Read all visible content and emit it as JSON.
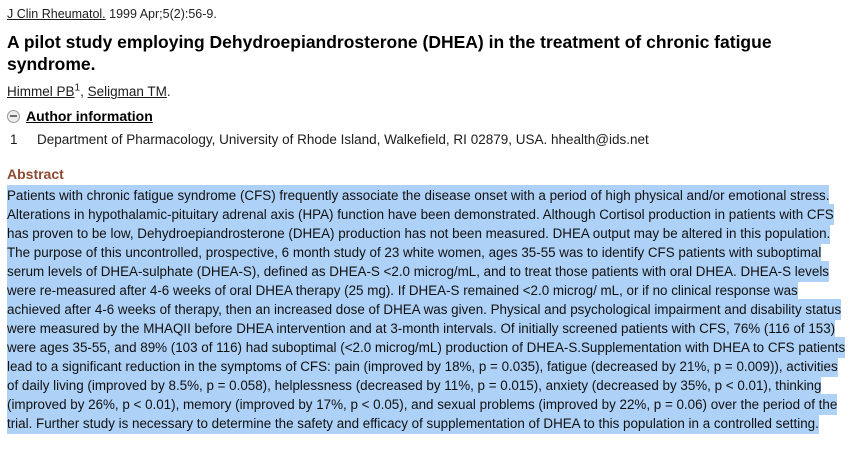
{
  "colors": {
    "selection": "#aed1f7",
    "abstract_heading": "#8f4a33"
  },
  "citation": {
    "journal": "J Clin Rheumatol.",
    "details": " 1999 Apr;5(2):56-9."
  },
  "title": "A pilot study employing Dehydroepiandrosterone (DHEA) in the treatment of chronic fatigue syndrome.",
  "authors": {
    "author1": "Himmel PB",
    "author1_sup": "1",
    "separator": ", ",
    "author2": "Seligman TM",
    "terminator": "."
  },
  "author_information": {
    "label": "Author information",
    "collapse_icon": "minus-circle-icon",
    "affiliations": [
      {
        "index": "1",
        "text": "Department of Pharmacology, University of Rhode Island, Walkefield, RI 02879, USA. hhealth@ids.net"
      }
    ]
  },
  "abstract": {
    "heading": "Abstract",
    "text": "Patients with chronic fatigue syndrome (CFS) frequently associate the disease onset with a period of high physical and/or emotional stress. Alterations in hypothalamic-pituitary adrenal axis (HPA) function have been demonstrated. Although Cortisol production in patients with CFS has proven to be low, Dehydroepiandrosterone (DHEA) production has not been measured. DHEA output may be altered in this population. The purpose of this uncontrolled, prospective, 6 month study of 23 white women, ages 35-55 was to identify CFS patients with suboptimal serum levels of DHEA-sulphate (DHEA-S), defined as DHEA-S <2.0 microg/mL, and to treat those patients with oral DHEA. DHEA-S levels were re-measured after 4-6 weeks of oral DHEA therapy (25 mg). If DHEA-S remained <2.0 microg/ mL, or if no clinical response was achieved after 4-6 weeks of therapy, then an increased dose of DHEA was given. Physical and psychological impairment and disability status were measured by the MHAQII before DHEA intervention and at 3-month intervals. Of initially screened patients with CFS, 76% (116 of 153) were ages 35-55, and 89% (103 of 116) had suboptimal (<2.0 microg/mL) production of DHEA-S.Supplementation with DHEA to CFS patients lead to a significant reduction in the symptoms of CFS: pain (improved by 18%, p = 0.035), fatigue (decreased by 21%, p = 0.009)), activities of daily living (improved by 8.5%, p = 0.058), helplessness (decreased by 11%, p = 0.015), anxiety (decreased by 35%, p < 0.01), thinking (improved by 26%, p < 0.01), memory (improved by 17%, p < 0.05), and sexual problems (improved by 22%, p = 0.06) over the period of the trial. Further study is necessary to determine the safety and efficacy of supplementation of DHEA to this population in a controlled setting."
  }
}
